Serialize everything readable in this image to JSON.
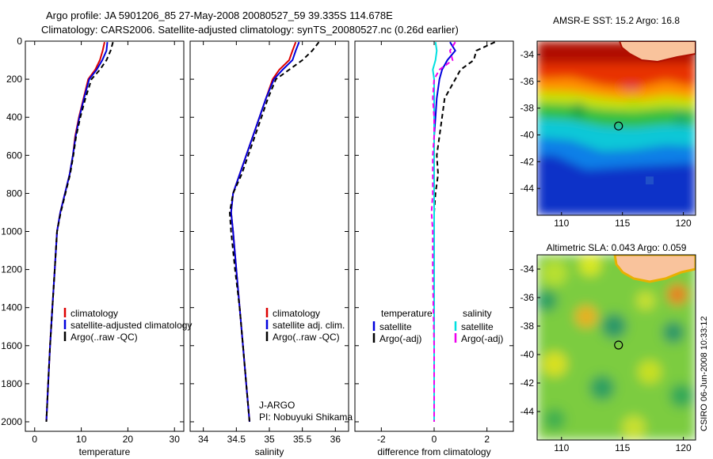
{
  "header": {
    "line1": "Argo profile: JA 5901206_85 27-May-2008 20080527_59 39.335S 114.678E",
    "line2": "Climatology: CARS2006. Satellite-adjusted climatology: synTS_20080527.nc (0.26d earlier)"
  },
  "footer_credit": "CSIRO 06-Jun-2008 10:33:12",
  "colors": {
    "climatology": "#dd0000",
    "satellite": "#0000dd",
    "argo": "#000000",
    "sat_salinity": "#00e0e0",
    "argo_salinity": "#ee00ee"
  },
  "chart_data": [
    {
      "id": "temperature-panel",
      "type": "line",
      "xlabel": "temperature",
      "xlim": [
        -2,
        32
      ],
      "xticks": [
        0,
        10,
        20,
        30
      ],
      "ylim": [
        0,
        2050
      ],
      "yticks": [
        0,
        200,
        400,
        600,
        800,
        1000,
        1200,
        1400,
        1600,
        1800,
        2000
      ],
      "y_reversed": true,
      "legend": [
        "climatology",
        "satellite-adjusted climatology",
        "Argo(..raw -QC)"
      ],
      "legend_position": "lower-middle",
      "series": [
        {
          "name": "climatology",
          "style": "solid",
          "color_key": "climatology",
          "x": [
            15.0,
            14.6,
            14.0,
            13.0,
            11.5,
            10.5,
            9.5,
            8.7,
            8.2,
            7.5,
            6.5,
            5.5,
            4.8,
            4.3,
            3.8,
            3.3,
            2.9,
            2.5
          ],
          "y": [
            5,
            50,
            100,
            150,
            200,
            300,
            400,
            500,
            600,
            700,
            800,
            900,
            1000,
            1200,
            1400,
            1600,
            1800,
            2000
          ]
        },
        {
          "name": "satellite-adjusted climatology",
          "style": "solid",
          "color_key": "satellite",
          "x": [
            15.6,
            15.4,
            14.5,
            13.3,
            11.7,
            10.6,
            9.6,
            8.8,
            8.2,
            7.5,
            6.5,
            5.5,
            4.8,
            4.3,
            3.8,
            3.3,
            2.9,
            2.5
          ],
          "y": [
            5,
            50,
            100,
            150,
            200,
            300,
            400,
            500,
            600,
            700,
            800,
            900,
            1000,
            1200,
            1400,
            1600,
            1800,
            2000
          ]
        },
        {
          "name": "Argo(..raw -QC)",
          "style": "dashed",
          "color_key": "argo",
          "x": [
            16.8,
            16.3,
            15.4,
            14.0,
            12.2,
            10.9,
            9.8,
            8.9,
            8.3,
            7.6,
            6.6,
            5.6,
            4.8,
            4.3,
            3.8,
            3.3,
            2.9,
            2.5
          ],
          "y": [
            5,
            50,
            100,
            150,
            200,
            300,
            400,
            500,
            600,
            700,
            800,
            900,
            1000,
            1200,
            1400,
            1600,
            1800,
            2000
          ]
        }
      ]
    },
    {
      "id": "salinity-panel",
      "type": "line",
      "xlabel": "salinity",
      "xlim": [
        33.8,
        36.2
      ],
      "xticks": [
        34,
        34.5,
        35,
        35.5,
        36
      ],
      "ylim": [
        0,
        2050
      ],
      "y_reversed": true,
      "legend": [
        "climatology",
        "satellite adj. clim.",
        "Argo(..raw -QC)"
      ],
      "legend_position": "lower-right",
      "annotation": [
        "J-ARGO",
        "PI: Nobuyuki Shikama"
      ],
      "series": [
        {
          "name": "climatology",
          "style": "solid",
          "color_key": "climatology",
          "x": [
            35.4,
            35.35,
            35.3,
            35.15,
            35.05,
            34.95,
            34.85,
            34.75,
            34.65,
            34.55,
            34.45,
            34.42,
            34.45,
            34.5,
            34.55,
            34.6,
            34.65,
            34.7
          ],
          "y": [
            5,
            50,
            100,
            150,
            200,
            300,
            400,
            500,
            600,
            700,
            800,
            900,
            1000,
            1200,
            1400,
            1600,
            1800,
            2000
          ]
        },
        {
          "name": "satellite adj. clim.",
          "style": "solid",
          "color_key": "satellite",
          "x": [
            35.45,
            35.4,
            35.35,
            35.2,
            35.07,
            34.95,
            34.85,
            34.75,
            34.65,
            34.55,
            34.45,
            34.42,
            34.45,
            34.5,
            34.55,
            34.6,
            34.65,
            34.7
          ],
          "y": [
            5,
            50,
            100,
            150,
            200,
            300,
            400,
            500,
            600,
            700,
            800,
            900,
            1000,
            1200,
            1400,
            1600,
            1800,
            2000
          ]
        },
        {
          "name": "Argo(..raw -QC)",
          "style": "dashed",
          "color_key": "argo",
          "x": [
            35.75,
            35.65,
            35.5,
            35.3,
            35.1,
            34.98,
            34.88,
            34.78,
            34.68,
            34.58,
            34.45,
            34.4,
            34.42,
            34.48,
            34.55,
            34.6,
            34.65,
            34.7
          ],
          "y": [
            5,
            50,
            100,
            150,
            200,
            300,
            400,
            500,
            600,
            700,
            800,
            900,
            1000,
            1200,
            1400,
            1600,
            1800,
            2000
          ]
        }
      ]
    },
    {
      "id": "difference-panel",
      "type": "line",
      "xlabel": "difference from climatology",
      "xlim": [
        -3,
        3
      ],
      "xticks": [
        -2,
        0,
        2
      ],
      "ylim": [
        0,
        2050
      ],
      "y_reversed": true,
      "legend_columns": [
        {
          "title": "temperature",
          "entries": [
            "satellite",
            "Argo(-adj)"
          ]
        },
        {
          "title": "salinity",
          "entries": [
            "satellite",
            "Argo(-adj)"
          ]
        }
      ],
      "legend_position": "lower-middle",
      "series": [
        {
          "name": "temperature satellite",
          "style": "solid",
          "color_key": "satellite",
          "x": [
            0.6,
            0.8,
            0.5,
            0.3,
            0.2,
            0.1,
            0.05,
            0,
            0,
            0,
            0,
            0,
            0,
            0,
            0,
            0,
            0,
            0
          ],
          "y": [
            5,
            50,
            100,
            150,
            200,
            300,
            400,
            500,
            600,
            700,
            800,
            900,
            1000,
            1200,
            1400,
            1600,
            1800,
            2000
          ]
        },
        {
          "name": "temperature Argo(-adj)",
          "style": "dashed",
          "color_key": "argo",
          "x": [
            2.3,
            1.6,
            1.5,
            1.0,
            0.8,
            0.4,
            0.3,
            0.2,
            0.1,
            0.15,
            0.05,
            0.0,
            0.0,
            0,
            0,
            0,
            0,
            0
          ],
          "y": [
            5,
            50,
            100,
            150,
            200,
            300,
            400,
            500,
            600,
            700,
            800,
            900,
            1000,
            1200,
            1400,
            1600,
            1800,
            2000
          ]
        },
        {
          "name": "salinity satellite",
          "style": "solid",
          "color_key": "sat_salinity",
          "x": [
            0.05,
            0.1,
            0.05,
            -0.05,
            0.0,
            0.0,
            0.0,
            0.0,
            0.0,
            0.0,
            0.0,
            0.0,
            0.0,
            0,
            0,
            0,
            0,
            0
          ],
          "y": [
            5,
            50,
            100,
            150,
            200,
            300,
            400,
            500,
            600,
            700,
            800,
            900,
            1000,
            1200,
            1400,
            1600,
            1800,
            2000
          ]
        },
        {
          "name": "salinity Argo(-adj)",
          "style": "dashed",
          "color_key": "argo_salinity",
          "x": [
            0.8,
            0.6,
            0.7,
            0.2,
            0.0,
            -0.05,
            0.0,
            0.0,
            -0.05,
            -0.05,
            -0.05,
            -0.1,
            -0.05,
            -0.05,
            -0.03,
            0,
            0,
            0
          ],
          "y": [
            5,
            50,
            100,
            150,
            200,
            300,
            400,
            500,
            600,
            700,
            800,
            900,
            1000,
            1200,
            1400,
            1600,
            1800,
            2000
          ]
        }
      ]
    },
    {
      "id": "sst-map",
      "type": "heatmap",
      "title": "AMSR-E SST: 15.2 Argo: 16.8",
      "xlim": [
        108,
        121
      ],
      "xticks": [
        110,
        115,
        120
      ],
      "ylim": [
        -46,
        -33
      ],
      "yticks": [
        -44,
        -42,
        -40,
        -38,
        -36,
        -34
      ],
      "marker": {
        "lon": 114.678,
        "lat": -39.335
      },
      "colormap": "jet"
    },
    {
      "id": "sla-map",
      "type": "heatmap",
      "title": "Altimetric SLA: 0.043 Argo: 0.059",
      "xlim": [
        108,
        121
      ],
      "xticks": [
        110,
        115,
        120
      ],
      "ylim": [
        -46,
        -33
      ],
      "yticks": [
        -44,
        -42,
        -40,
        -38,
        -36,
        -34
      ],
      "marker": {
        "lon": 114.678,
        "lat": -39.335
      },
      "colormap": "jet"
    }
  ]
}
